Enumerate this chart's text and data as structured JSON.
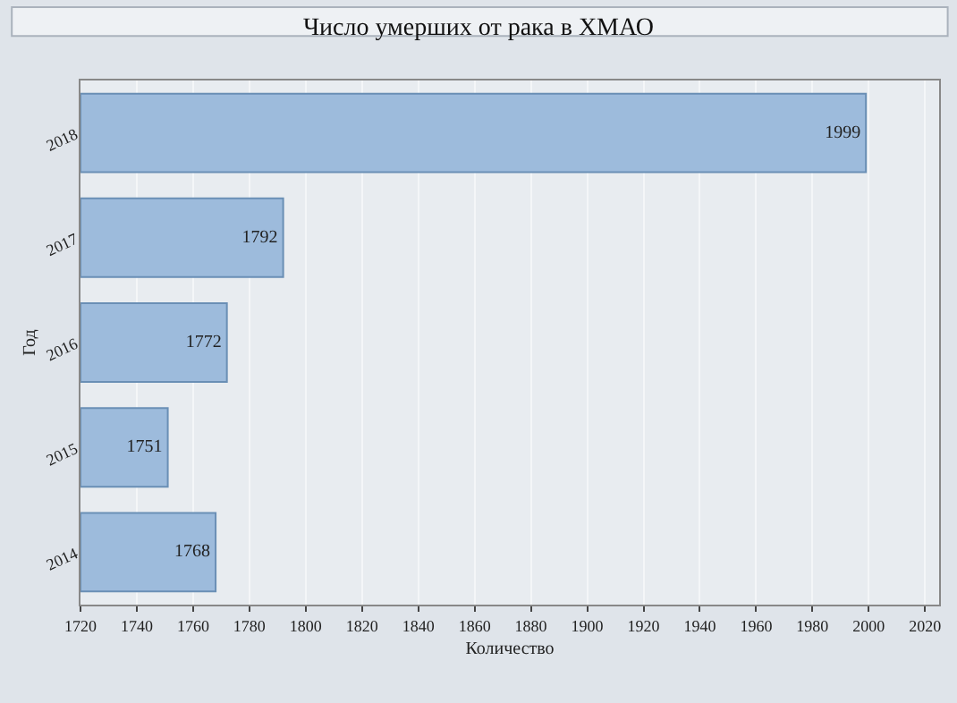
{
  "chart_data": {
    "type": "bar",
    "orientation": "horizontal",
    "title": "Число умерших от рака в ХМАО",
    "xlabel": "Количество",
    "ylabel": "Год",
    "categories": [
      "2018",
      "2017",
      "2016",
      "2015",
      "2014"
    ],
    "values": [
      1999,
      1792,
      1772,
      1751,
      1768
    ],
    "color": "#9dbbdc",
    "xlim": [
      1720,
      2025
    ],
    "xticks": [
      1720,
      1740,
      1760,
      1780,
      1800,
      1820,
      1840,
      1860,
      1880,
      1900,
      1920,
      1940,
      1960,
      1980,
      2000,
      2020
    ],
    "data_labels": true,
    "grid": "x",
    "legend": false
  }
}
